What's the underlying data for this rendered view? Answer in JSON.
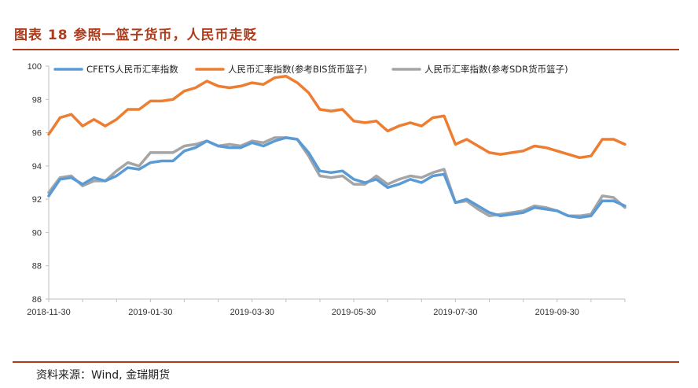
{
  "figure_title": "图表 18   参照一篮子货币，人民币走贬",
  "source": "资料来源：Wind, 金瑞期货",
  "colors": {
    "title": "#b03a1a",
    "rule": "#b03a1a",
    "cfets": "#5b9bd5",
    "bis": "#ed7d31",
    "sdr": "#a5a5a5",
    "axis": "#bfbfbf"
  },
  "chart_data": {
    "type": "line",
    "title": "",
    "xlabel": "",
    "ylabel": "",
    "ylim": [
      86,
      100
    ],
    "yticks": [
      86,
      88,
      90,
      92,
      94,
      96,
      98,
      100
    ],
    "grid": false,
    "legend_position": "top",
    "x_tick_labels": [
      "2018-11-30",
      "2019-01-30",
      "2019-03-30",
      "2019-05-30",
      "2019-07-30",
      "2019-09-30"
    ],
    "x_tick_index": [
      0,
      9,
      18,
      27,
      36,
      45
    ],
    "series": [
      {
        "name": "CFETS人民币汇率指数",
        "color": "#5b9bd5",
        "values": [
          92.2,
          93.2,
          93.3,
          92.9,
          93.3,
          93.1,
          93.4,
          93.9,
          93.8,
          94.2,
          94.3,
          94.3,
          94.9,
          95.1,
          95.5,
          95.2,
          95.1,
          95.1,
          95.4,
          95.2,
          95.5,
          95.7,
          95.6,
          94.8,
          93.7,
          93.6,
          93.7,
          93.2,
          93.0,
          93.2,
          92.7,
          92.9,
          93.2,
          93.0,
          93.4,
          93.5,
          91.8,
          92.0,
          91.6,
          91.2,
          91.0,
          91.1,
          91.2,
          91.5,
          91.4,
          91.3,
          91.0,
          90.9,
          91.0,
          91.9,
          91.9,
          91.6
        ]
      },
      {
        "name": "人民币汇率指数(参考BIS货币篮子)",
        "color": "#ed7d31",
        "values": [
          95.9,
          96.9,
          97.1,
          96.4,
          96.8,
          96.4,
          96.8,
          97.4,
          97.4,
          97.9,
          97.9,
          98.0,
          98.5,
          98.7,
          99.1,
          98.8,
          98.7,
          98.8,
          99.0,
          98.9,
          99.3,
          99.4,
          99.0,
          98.4,
          97.4,
          97.3,
          97.4,
          96.7,
          96.6,
          96.7,
          96.1,
          96.4,
          96.6,
          96.4,
          96.9,
          97.0,
          95.3,
          95.6,
          95.2,
          94.8,
          94.7,
          94.8,
          94.9,
          95.2,
          95.1,
          94.9,
          94.7,
          94.5,
          94.6,
          95.6,
          95.6,
          95.3
        ]
      },
      {
        "name": "人民币汇率指数(参考SDR货币篮子)",
        "color": "#a5a5a5",
        "values": [
          92.4,
          93.3,
          93.4,
          92.8,
          93.1,
          93.1,
          93.7,
          94.2,
          94.0,
          94.8,
          94.8,
          94.8,
          95.2,
          95.3,
          95.5,
          95.2,
          95.3,
          95.2,
          95.5,
          95.4,
          95.7,
          95.7,
          95.6,
          94.6,
          93.4,
          93.3,
          93.4,
          92.9,
          92.9,
          93.4,
          92.9,
          93.2,
          93.4,
          93.3,
          93.6,
          93.8,
          91.8,
          91.9,
          91.4,
          91.0,
          91.1,
          91.2,
          91.3,
          91.6,
          91.5,
          91.3,
          91.0,
          91.0,
          91.1,
          92.2,
          92.1,
          91.5
        ]
      }
    ]
  }
}
